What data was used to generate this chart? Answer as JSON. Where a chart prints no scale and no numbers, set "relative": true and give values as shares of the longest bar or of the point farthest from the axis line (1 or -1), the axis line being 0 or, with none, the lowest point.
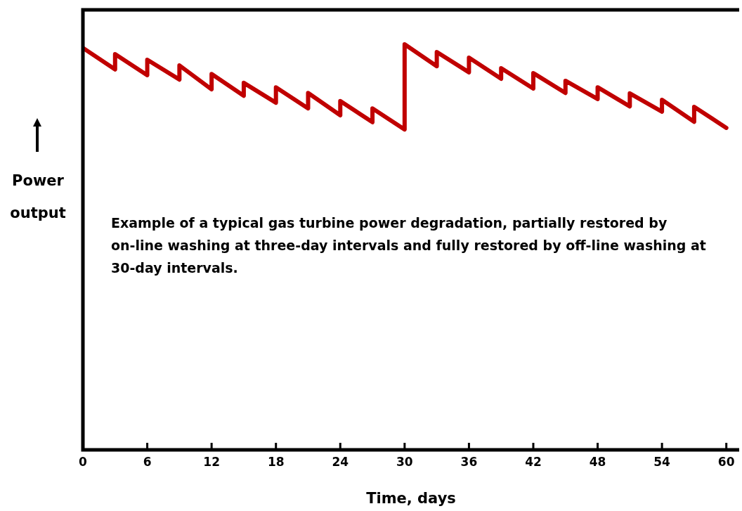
{
  "chart_data": {
    "type": "line",
    "relative": true,
    "xlabel": "Time, days",
    "ylabel": "Power output",
    "annotations": [
      "Example of a typical gas turbine power degradation, partially restored by on-line washing at three-day intervals and fully restored by off-line washing at 30-day intervals."
    ],
    "xlim": [
      0,
      61.2
    ],
    "xticks": [
      0,
      6,
      12,
      18,
      24,
      30,
      36,
      42,
      48,
      54,
      60
    ],
    "grid": false,
    "legend": false,
    "marker": "none",
    "line_style": "solid",
    "series": [
      {
        "color": "#c00000",
        "x": [
          0,
          3,
          3,
          6,
          6,
          9,
          9,
          12,
          12,
          15,
          15,
          18,
          18,
          21,
          21,
          24,
          24,
          27,
          27,
          30,
          30,
          33,
          33,
          36,
          36,
          39,
          39,
          42,
          42,
          45,
          45,
          48,
          48,
          51,
          51,
          54,
          54,
          57,
          57,
          60
        ],
        "values": [
          0.991,
          0.938,
          0.976,
          0.924,
          0.962,
          0.913,
          0.948,
          0.889,
          0.927,
          0.873,
          0.905,
          0.856,
          0.894,
          0.842,
          0.88,
          0.825,
          0.86,
          0.808,
          0.842,
          0.79,
          1.0,
          0.946,
          0.981,
          0.931,
          0.967,
          0.915,
          0.941,
          0.891,
          0.929,
          0.88,
          0.91,
          0.865,
          0.894,
          0.847,
          0.879,
          0.834,
          0.863,
          0.809,
          0.846,
          0.794
        ]
      }
    ]
  }
}
